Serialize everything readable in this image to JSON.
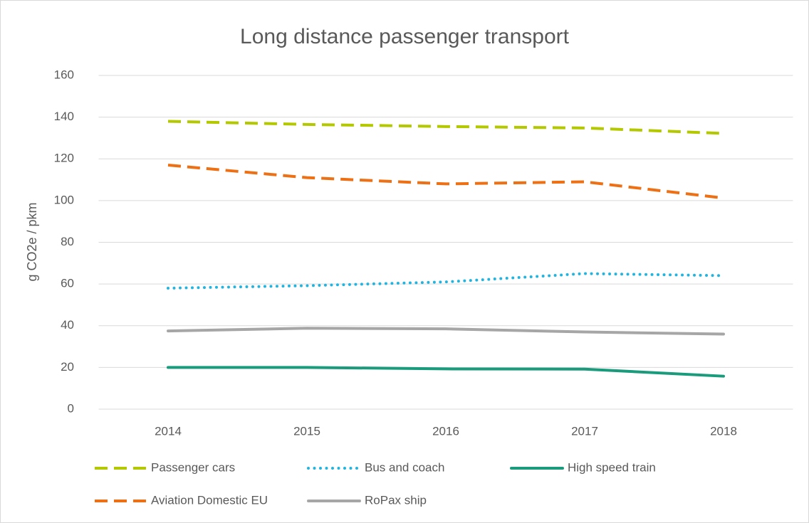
{
  "chart_data": {
    "type": "line",
    "title": "Long distance passenger transport",
    "y_label": "g CO2e / pkm",
    "categories": [
      "2014",
      "2015",
      "2016",
      "2017",
      "2018"
    ],
    "series": [
      {
        "name": "Passenger cars",
        "color": "#b4c800",
        "style": "dashed",
        "values": [
          138,
          136.5,
          135.5,
          134.8,
          132.2
        ]
      },
      {
        "name": "Bus and coach",
        "color": "#1fb5e0",
        "style": "dotted",
        "values": [
          58,
          59.2,
          61,
          65,
          64
        ]
      },
      {
        "name": "High speed train",
        "color": "#1a9b7c",
        "style": "solid",
        "values": [
          20,
          20,
          19.3,
          19.2,
          15.8
        ]
      },
      {
        "name": "Aviation Domestic EU",
        "color": "#ed7014",
        "style": "dashed",
        "values": [
          117,
          111,
          108,
          109,
          101.2
        ]
      },
      {
        "name": "RoPax ship",
        "color": "#a6a6a6",
        "style": "solid",
        "values": [
          37.5,
          38.8,
          38.5,
          37,
          36
        ]
      }
    ],
    "ylim": [
      0,
      160
    ],
    "yticks": [
      0,
      20,
      40,
      60,
      80,
      100,
      120,
      140,
      160
    ],
    "grid": true,
    "legend": "bottom"
  }
}
